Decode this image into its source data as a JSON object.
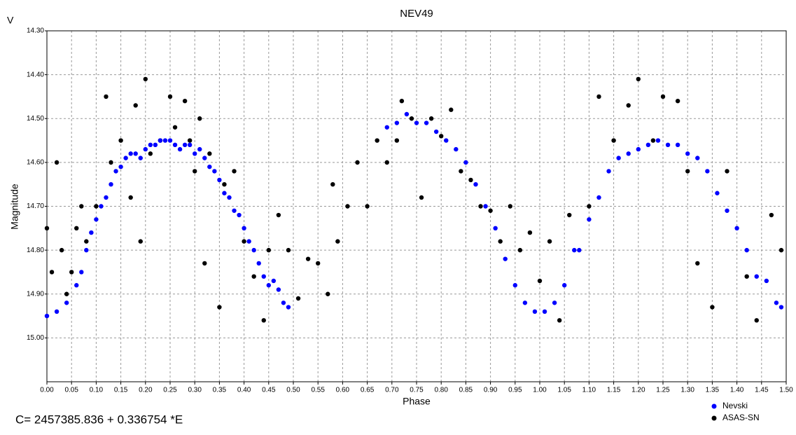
{
  "chart_data": {
    "type": "scatter",
    "title": "NEV49",
    "y_unit_label": "V",
    "xlabel": "Phase",
    "ylabel": "Magnitude",
    "annotation": "C= 2457385.836 + 0.336754 *E",
    "xlim": [
      0,
      1.5
    ],
    "ylim": [
      15.1,
      14.3
    ],
    "y_inverted": true,
    "grid": true,
    "legend": "lower right",
    "xticks": [
      {
        "value": 0,
        "label": "0.00"
      },
      {
        "value": 0.05,
        "label": "0.05"
      },
      {
        "value": 0.1,
        "label": "0.10"
      },
      {
        "value": 0.15,
        "label": "0.15"
      },
      {
        "value": 0.2,
        "label": "0.20"
      },
      {
        "value": 0.25,
        "label": "0.25"
      },
      {
        "value": 0.3,
        "label": "0.30"
      },
      {
        "value": 0.35,
        "label": "0.35"
      },
      {
        "value": 0.4,
        "label": "0.40"
      },
      {
        "value": 0.45,
        "label": "0.45"
      },
      {
        "value": 0.5,
        "label": "0.50"
      },
      {
        "value": 0.55,
        "label": "0.55"
      },
      {
        "value": 0.6,
        "label": "0.60"
      },
      {
        "value": 0.65,
        "label": "0.65"
      },
      {
        "value": 0.7,
        "label": "0.70"
      },
      {
        "value": 0.75,
        "label": "0.75"
      },
      {
        "value": 0.8,
        "label": "0.80"
      },
      {
        "value": 0.85,
        "label": "0.85"
      },
      {
        "value": 0.9,
        "label": "0.90"
      },
      {
        "value": 0.95,
        "label": "0.95"
      },
      {
        "value": 1,
        "label": "1.00"
      },
      {
        "value": 1.05,
        "label": "1.05"
      },
      {
        "value": 1.1,
        "label": "1.10"
      },
      {
        "value": 1.15,
        "label": "1.15"
      },
      {
        "value": 1.2,
        "label": "1.20"
      },
      {
        "value": 1.25,
        "label": "1.25"
      },
      {
        "value": 1.3,
        "label": "1.30"
      },
      {
        "value": 1.35,
        "label": "1.35"
      },
      {
        "value": 1.4,
        "label": "1.40"
      },
      {
        "value": 1.45,
        "label": "1.45"
      },
      {
        "value": 1.5,
        "label": "1.50"
      }
    ],
    "yticks": [
      {
        "value": 14.3,
        "label": "14.30"
      },
      {
        "value": 14.4,
        "label": "14.40"
      },
      {
        "value": 14.5,
        "label": "14.50"
      },
      {
        "value": 14.6,
        "label": "14.60"
      },
      {
        "value": 14.7,
        "label": "14.70"
      },
      {
        "value": 14.8,
        "label": "14.80"
      },
      {
        "value": 14.9,
        "label": "14.90"
      },
      {
        "value": 15.0,
        "label": "15.00"
      }
    ],
    "series": [
      {
        "name": "Nevski",
        "color": "#0000ff",
        "x": [
          0.0,
          0.02,
          0.04,
          0.06,
          0.07,
          0.08,
          0.09,
          0.1,
          0.11,
          0.12,
          0.13,
          0.14,
          0.15,
          0.16,
          0.17,
          0.18,
          0.19,
          0.2,
          0.21,
          0.22,
          0.23,
          0.24,
          0.25,
          0.26,
          0.27,
          0.28,
          0.29,
          0.3,
          0.31,
          0.32,
          0.33,
          0.34,
          0.35,
          0.36,
          0.37,
          0.38,
          0.39,
          0.4,
          0.41,
          0.42,
          0.43,
          0.44,
          0.45,
          0.46,
          0.47,
          0.48,
          0.49,
          0.69,
          0.71,
          0.73,
          0.75,
          0.77,
          0.79,
          0.81,
          0.83,
          0.85,
          0.87,
          0.89,
          0.91,
          0.93,
          0.95,
          0.97,
          0.99,
          1.01,
          1.03,
          1.05,
          1.07,
          1.08,
          1.1,
          1.12,
          1.14,
          1.16,
          1.18,
          1.2,
          1.22,
          1.24,
          1.26,
          1.28,
          1.3,
          1.32,
          1.34,
          1.36,
          1.38,
          1.4,
          1.42,
          1.44,
          1.46,
          1.48,
          1.49
        ],
        "values": [
          14.95,
          14.94,
          14.92,
          14.88,
          14.85,
          14.8,
          14.76,
          14.73,
          14.7,
          14.68,
          14.65,
          14.62,
          14.61,
          14.59,
          14.58,
          14.58,
          14.59,
          14.57,
          14.56,
          14.56,
          14.55,
          14.55,
          14.55,
          14.56,
          14.57,
          14.56,
          14.56,
          14.58,
          14.57,
          14.59,
          14.61,
          14.62,
          14.64,
          14.67,
          14.68,
          14.71,
          14.72,
          14.75,
          14.78,
          14.8,
          14.83,
          14.86,
          14.88,
          14.87,
          14.89,
          14.92,
          14.93,
          14.52,
          14.51,
          14.49,
          14.51,
          14.51,
          14.53,
          14.55,
          14.57,
          14.6,
          14.65,
          14.7,
          14.75,
          14.82,
          14.88,
          14.92,
          14.94,
          14.94,
          14.92,
          14.88,
          14.8,
          14.8,
          14.73,
          14.68,
          14.62,
          14.59,
          14.58,
          14.57,
          14.56,
          14.55,
          14.56,
          14.56,
          14.58,
          14.59,
          14.62,
          14.67,
          14.71,
          14.75,
          14.8,
          14.86,
          14.87,
          14.92,
          14.93
        ]
      },
      {
        "name": "ASAS-SN",
        "color": "#000000",
        "x": [
          0.0,
          0.01,
          0.02,
          0.03,
          0.04,
          0.05,
          0.06,
          0.07,
          0.08,
          0.1,
          0.12,
          0.13,
          0.15,
          0.17,
          0.18,
          0.19,
          0.2,
          0.21,
          0.23,
          0.25,
          0.26,
          0.28,
          0.29,
          0.3,
          0.31,
          0.32,
          0.33,
          0.35,
          0.36,
          0.38,
          0.4,
          0.42,
          0.44,
          0.45,
          0.47,
          0.49,
          0.51,
          0.53,
          0.55,
          0.57,
          0.58,
          0.59,
          0.61,
          0.63,
          0.65,
          0.67,
          0.69,
          0.71,
          0.72,
          0.74,
          0.76,
          0.78,
          0.8,
          0.82,
          0.84,
          0.86,
          0.88,
          0.9,
          0.92,
          0.94,
          0.96,
          0.98,
          1.0,
          1.02,
          1.04,
          1.06,
          1.1,
          1.12,
          1.15,
          1.18,
          1.2,
          1.23,
          1.25,
          1.28,
          1.3,
          1.32,
          1.35,
          1.38,
          1.42,
          1.44,
          1.47,
          1.49
        ],
        "values": [
          14.75,
          14.85,
          14.6,
          14.8,
          14.9,
          14.85,
          14.75,
          14.7,
          14.78,
          14.7,
          14.45,
          14.6,
          14.55,
          14.68,
          14.47,
          14.78,
          14.41,
          14.58,
          14.55,
          14.45,
          14.52,
          14.46,
          14.55,
          14.62,
          14.5,
          14.83,
          14.58,
          14.93,
          14.65,
          14.62,
          14.78,
          14.86,
          14.96,
          14.8,
          14.72,
          14.8,
          14.91,
          14.82,
          14.83,
          14.9,
          14.65,
          14.78,
          14.7,
          14.6,
          14.7,
          14.55,
          14.6,
          14.55,
          14.46,
          14.5,
          14.68,
          14.5,
          14.54,
          14.48,
          14.62,
          14.64,
          14.7,
          14.71,
          14.78,
          14.7,
          14.8,
          14.76,
          14.87,
          14.78,
          14.96,
          14.72,
          14.7,
          14.45,
          14.55,
          14.47,
          14.41,
          14.55,
          14.45,
          14.46,
          14.62,
          14.83,
          14.93,
          14.62,
          14.86,
          14.96,
          14.72,
          14.8
        ]
      }
    ]
  }
}
